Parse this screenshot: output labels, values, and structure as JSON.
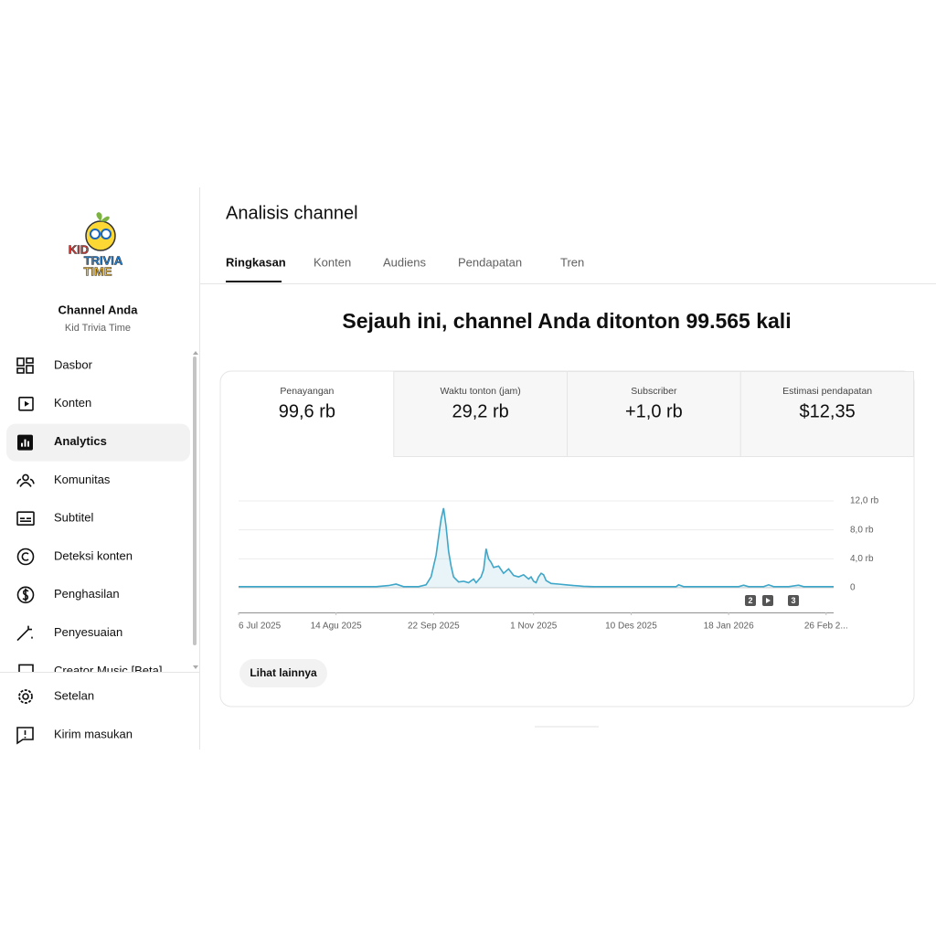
{
  "sidebar": {
    "logo": [
      "KID",
      "TRIVIA",
      "TIME"
    ],
    "channel_label": "Channel Anda",
    "channel_name": "Kid Trivia Time",
    "nav": [
      "Dasbor",
      "Konten",
      "Analytics",
      "Komunitas",
      "Subtitel",
      "Deteksi konten",
      "Penghasilan",
      "Penyesuaian",
      "Creator Music [Beta]"
    ],
    "footer_nav": [
      "Setelan",
      "Kirim masukan"
    ]
  },
  "header": {
    "title": "Analisis channel",
    "tabs": [
      "Ringkasan",
      "Konten",
      "Audiens",
      "Pendapatan",
      "Tren"
    ]
  },
  "headline": "Sejauh ini, channel Anda ditonton 99.565 kali",
  "metrics": [
    {
      "label": "Penayangan",
      "value": "99,6 rb"
    },
    {
      "label": "Waktu tonton (jam)",
      "value": "29,2 rb"
    },
    {
      "label": "Subscriber",
      "value": "+1,0 rb"
    },
    {
      "label": "Estimasi pendapatan",
      "value": "$12,35"
    }
  ],
  "chart_data": {
    "type": "line",
    "color": "#3ea6c8",
    "x": [
      0,
      20,
      40,
      55,
      60,
      63,
      66,
      72,
      75,
      77,
      79,
      80,
      81,
      82,
      83,
      84,
      85,
      86,
      88,
      90,
      92,
      94,
      95,
      97,
      98,
      99,
      100,
      101,
      102,
      104,
      106,
      108,
      110,
      112,
      114,
      116,
      117,
      118,
      119,
      120,
      121,
      122,
      123,
      125,
      128,
      131,
      134,
      138,
      142,
      160,
      175,
      176,
      178,
      200,
      202,
      204,
      210,
      212,
      214,
      220,
      224,
      226,
      238
    ],
    "values": [
      150,
      150,
      150,
      150,
      300,
      500,
      150,
      150,
      400,
      1500,
      4500,
      7000,
      9500,
      11000,
      8500,
      5000,
      3000,
      1500,
      800,
      900,
      700,
      1200,
      700,
      1500,
      2500,
      5400,
      4000,
      3500,
      2800,
      3000,
      2000,
      2600,
      1700,
      1500,
      1800,
      1200,
      1500,
      900,
      700,
      1500,
      2000,
      1800,
      1000,
      600,
      500,
      400,
      300,
      200,
      150,
      150,
      150,
      400,
      150,
      150,
      350,
      150,
      150,
      400,
      150,
      150,
      350,
      150,
      150
    ],
    "xlim": [
      0,
      238
    ],
    "xticks": [
      {
        "value": 0,
        "label": "6 Jul 2025"
      },
      {
        "value": 39,
        "label": "14 Agu 2025"
      },
      {
        "value": 78,
        "label": "22 Sep 2025"
      },
      {
        "value": 118,
        "label": "1 Nov 2025"
      },
      {
        "value": 157,
        "label": "10 Des 2025"
      },
      {
        "value": 196,
        "label": "18 Jan 2026"
      },
      {
        "value": 235,
        "label": "26 Feb 2..."
      }
    ],
    "ylim": [
      0,
      12000
    ],
    "yticks": [
      0,
      {
        "value": 4000,
        "label": "4,0 rb"
      },
      {
        "value": 8000,
        "label": "8,0 rb"
      },
      {
        "value": 12000,
        "label": "12,0 rb"
      }
    ],
    "grid": true,
    "markers": [
      "2",
      "3"
    ]
  },
  "button": "Lihat lainnya"
}
